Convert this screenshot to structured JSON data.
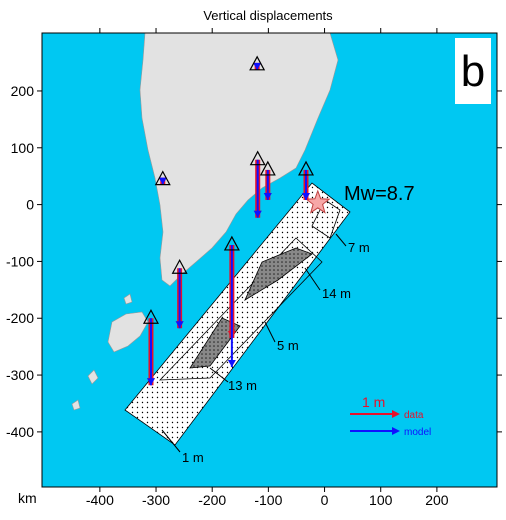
{
  "chart_data": {
    "type": "map",
    "title": "Vertical displacements",
    "panel_label": "b",
    "x_label": "km",
    "xlim": [
      -503,
      307
    ],
    "ylim": [
      -497,
      302
    ],
    "xticks": [
      -400,
      -300,
      -200,
      -100,
      0,
      100,
      200
    ],
    "yticks": [
      -400,
      -300,
      -200,
      -100,
      0,
      100,
      200
    ],
    "magnitude_label": "Mw=8.7",
    "epicenter": {
      "x": -12,
      "y": 3
    },
    "contour_labels": [
      "7 m",
      "14 m",
      "5 m",
      "13 m",
      "1 m"
    ],
    "legend": {
      "scale_label": "1 m",
      "series": [
        {
          "name": "data",
          "color": "#e8102a"
        },
        {
          "name": "model",
          "color": "#1010ff"
        }
      ]
    },
    "stations": {
      "x": [
        -309,
        -258,
        -165,
        -119,
        -101,
        -33,
        -288,
        -120
      ],
      "y": [
        -200,
        -112,
        -71,
        79,
        61,
        61,
        44,
        246
      ],
      "data": [
        -1.34,
        -1.2,
        -1.86,
        -1.16,
        -0.6,
        -0.6,
        -0.1,
        -0.1
      ],
      "model": [
        -1.34,
        -1.2,
        -2.44,
        -1.16,
        -0.6,
        -0.6,
        -0.1,
        -0.1
      ]
    }
  }
}
